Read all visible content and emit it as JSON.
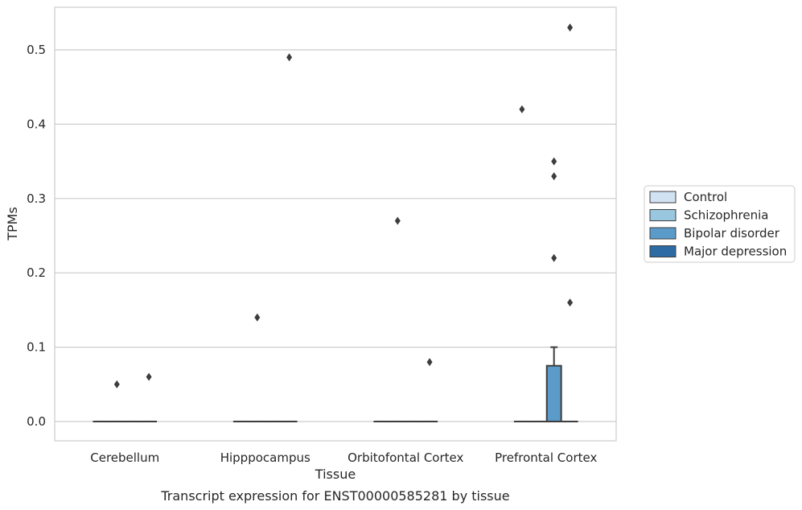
{
  "chart_data": {
    "type": "box",
    "caption": "Transcript expression for ENST00000585281 by tissue",
    "xlabel": "Tissue",
    "ylabel": "TPMs",
    "ylim": [
      -0.026,
      0.556
    ],
    "yticks": [
      0.0,
      0.1,
      0.2,
      0.3,
      0.4,
      0.5
    ],
    "ytick_labels": [
      "0.0",
      "0.1",
      "0.2",
      "0.3",
      "0.4",
      "0.5"
    ],
    "grid": "horizontal",
    "legend_position": "right",
    "categories": [
      "Cerebellum",
      "Hipppocampus",
      "Orbitofontal Cortex",
      "Prefrontal Cortex"
    ],
    "series": [
      {
        "name": "Control",
        "color": "#d1e2f2",
        "boxes": [
          {
            "category": "Cerebellum",
            "q1": 0,
            "median": 0,
            "q3": 0,
            "whisker_low": 0,
            "whisker_high": 0,
            "outliers": []
          },
          {
            "category": "Hipppocampus",
            "q1": 0,
            "median": 0,
            "q3": 0,
            "whisker_low": 0,
            "whisker_high": 0,
            "outliers": []
          },
          {
            "category": "Orbitofontal Cortex",
            "q1": 0,
            "median": 0,
            "q3": 0,
            "whisker_low": 0,
            "whisker_high": 0,
            "outliers": []
          },
          {
            "category": "Prefrontal Cortex",
            "q1": 0,
            "median": 0,
            "q3": 0,
            "whisker_low": 0,
            "whisker_high": 0,
            "outliers": [
              0.42
            ]
          }
        ]
      },
      {
        "name": "Schizophrenia",
        "color": "#9ac7e0",
        "boxes": [
          {
            "category": "Cerebellum",
            "q1": 0,
            "median": 0,
            "q3": 0,
            "whisker_low": 0,
            "whisker_high": 0,
            "outliers": [
              0.05
            ]
          },
          {
            "category": "Hipppocampus",
            "q1": 0,
            "median": 0,
            "q3": 0,
            "whisker_low": 0,
            "whisker_high": 0,
            "outliers": [
              0.14
            ]
          },
          {
            "category": "Orbitofontal Cortex",
            "q1": 0,
            "median": 0,
            "q3": 0,
            "whisker_low": 0,
            "whisker_high": 0,
            "outliers": [
              0.27
            ]
          },
          {
            "category": "Prefrontal Cortex",
            "q1": 0,
            "median": 0,
            "q3": 0,
            "whisker_low": 0,
            "whisker_high": 0,
            "outliers": []
          }
        ]
      },
      {
        "name": "Bipolar disorder",
        "color": "#5a9bc9",
        "boxes": [
          {
            "category": "Cerebellum",
            "q1": 0,
            "median": 0,
            "q3": 0,
            "whisker_low": 0,
            "whisker_high": 0,
            "outliers": []
          },
          {
            "category": "Hipppocampus",
            "q1": 0,
            "median": 0,
            "q3": 0,
            "whisker_low": 0,
            "whisker_high": 0,
            "outliers": []
          },
          {
            "category": "Orbitofontal Cortex",
            "q1": 0,
            "median": 0,
            "q3": 0,
            "whisker_low": 0,
            "whisker_high": 0,
            "outliers": []
          },
          {
            "category": "Prefrontal Cortex",
            "q1": 0,
            "median": 0,
            "q3": 0.075,
            "whisker_low": 0,
            "whisker_high": 0.1,
            "outliers": [
              0.35,
              0.33,
              0.22
            ]
          }
        ]
      },
      {
        "name": "Major depression",
        "color": "#2c6ba3",
        "boxes": [
          {
            "category": "Cerebellum",
            "q1": 0,
            "median": 0,
            "q3": 0,
            "whisker_low": 0,
            "whisker_high": 0,
            "outliers": [
              0.06
            ]
          },
          {
            "category": "Hipppocampus",
            "q1": 0,
            "median": 0,
            "q3": 0,
            "whisker_low": 0,
            "whisker_high": 0,
            "outliers": [
              0.49
            ]
          },
          {
            "category": "Orbitofontal Cortex",
            "q1": 0,
            "median": 0,
            "q3": 0,
            "whisker_low": 0,
            "whisker_high": 0,
            "outliers": [
              0.08
            ]
          },
          {
            "category": "Prefrontal Cortex",
            "q1": 0,
            "median": 0,
            "q3": 0,
            "whisker_low": 0,
            "whisker_high": 0,
            "outliers": [
              0.53,
              0.16
            ]
          }
        ]
      }
    ]
  }
}
